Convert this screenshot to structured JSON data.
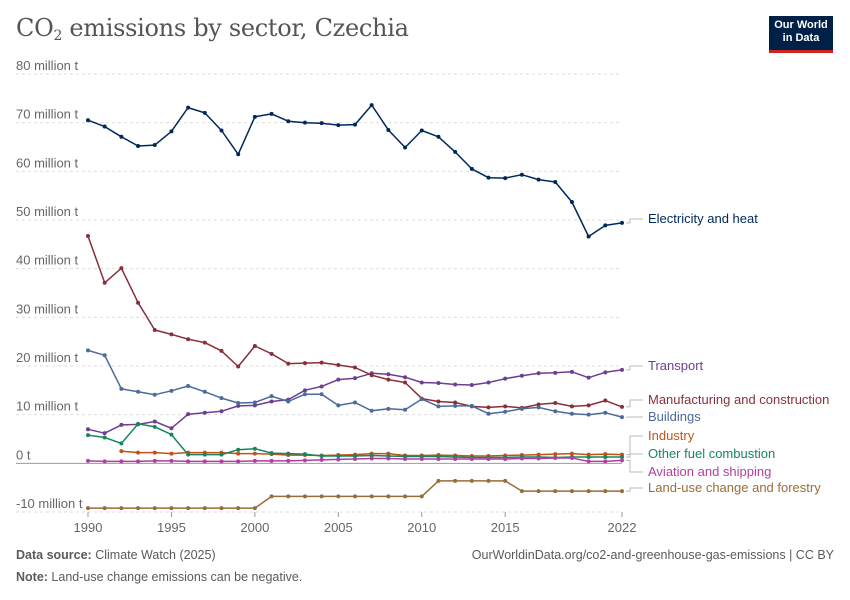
{
  "header": {
    "title_prefix": "CO",
    "title_sub": "2",
    "title_suffix": " emissions by sector, Czechia",
    "logo_line1": "Our World",
    "logo_line2": "in Data"
  },
  "footer": {
    "source_label": "Data source:",
    "source_value": " Climate Watch (2025)",
    "url": "OurWorldinData.org/co2-and-greenhouse-gas-emissions | CC BY",
    "note_label": "Note:",
    "note_value": " Land-use change emissions can be negative."
  },
  "chart_data": {
    "type": "line",
    "title": "CO₂ emissions by sector, Czechia",
    "xlabel": "",
    "ylabel": "",
    "xlim": [
      1990,
      2022
    ],
    "ylim": [
      -10000000,
      80000000
    ],
    "x_ticks": [
      1990,
      1995,
      2000,
      2005,
      2010,
      2015,
      2022
    ],
    "x_tick_labels": [
      "1990",
      "1995",
      "2000",
      "2005",
      "2010",
      "2015",
      "2022"
    ],
    "y_ticks": [
      -10000000,
      0,
      10000000,
      20000000,
      30000000,
      40000000,
      50000000,
      60000000,
      70000000,
      80000000
    ],
    "y_tick_labels": [
      "-10 million t",
      "0 t",
      "10 million t",
      "20 million t",
      "30 million t",
      "40 million t",
      "50 million t",
      "60 million t",
      "70 million t",
      "80 million t"
    ],
    "grid": true,
    "legend": "right",
    "series": [
      {
        "name": "Electricity and heat",
        "color": "#00295b",
        "x": [
          1990,
          1991,
          1992,
          1993,
          1994,
          1995,
          1996,
          1997,
          1998,
          1999,
          2000,
          2001,
          2002,
          2003,
          2004,
          2005,
          2006,
          2007,
          2008,
          2009,
          2010,
          2011,
          2012,
          2013,
          2014,
          2015,
          2016,
          2017,
          2018,
          2019,
          2020,
          2021,
          2022
        ],
        "values": [
          70500000,
          69200000,
          67100000,
          65200000,
          65400000,
          68200000,
          73100000,
          72000000,
          68400000,
          63500000,
          71200000,
          71800000,
          70300000,
          70000000,
          69900000,
          69500000,
          69600000,
          73600000,
          68500000,
          64900000,
          68400000,
          67100000,
          64000000,
          60500000,
          58700000,
          58600000,
          59300000,
          58300000,
          57800000,
          53700000,
          46600000,
          48900000,
          49400000
        ]
      },
      {
        "name": "Transport",
        "color": "#6d3e91",
        "x": [
          1990,
          1991,
          1992,
          1993,
          1994,
          1995,
          1996,
          1997,
          1998,
          1999,
          2000,
          2001,
          2002,
          2003,
          2004,
          2005,
          2006,
          2007,
          2008,
          2009,
          2010,
          2011,
          2012,
          2013,
          2014,
          2015,
          2016,
          2017,
          2018,
          2019,
          2020,
          2021,
          2022
        ],
        "values": [
          7000000,
          6200000,
          7900000,
          8000000,
          8600000,
          7200000,
          10100000,
          10400000,
          10700000,
          11800000,
          11900000,
          12700000,
          13100000,
          15000000,
          15800000,
          17200000,
          17500000,
          18500000,
          18300000,
          17700000,
          16600000,
          16500000,
          16200000,
          16100000,
          16600000,
          17400000,
          18000000,
          18500000,
          18600000,
          18800000,
          17600000,
          18700000,
          19200000
        ]
      },
      {
        "name": "Manufacturing and construction",
        "color": "#883039",
        "x": [
          1990,
          1991,
          1992,
          1993,
          1994,
          1995,
          1996,
          1997,
          1998,
          1999,
          2000,
          2001,
          2002,
          2003,
          2004,
          2005,
          2006,
          2007,
          2008,
          2009,
          2010,
          2011,
          2012,
          2013,
          2014,
          2015,
          2016,
          2017,
          2018,
          2019,
          2020,
          2021,
          2022
        ],
        "values": [
          46700000,
          37100000,
          40100000,
          33000000,
          27400000,
          26500000,
          25500000,
          24800000,
          23100000,
          19900000,
          24100000,
          22500000,
          20500000,
          20600000,
          20700000,
          20200000,
          19700000,
          18100000,
          17200000,
          16600000,
          13300000,
          12700000,
          12500000,
          11700000,
          11500000,
          11700000,
          11400000,
          12100000,
          12400000,
          11700000,
          11900000,
          12900000,
          11600000
        ]
      },
      {
        "name": "Buildings",
        "color": "#4c6a9c",
        "x": [
          1990,
          1991,
          1992,
          1993,
          1994,
          1995,
          1996,
          1997,
          1998,
          1999,
          2000,
          2001,
          2002,
          2003,
          2004,
          2005,
          2006,
          2007,
          2008,
          2009,
          2010,
          2011,
          2012,
          2013,
          2014,
          2015,
          2016,
          2017,
          2018,
          2019,
          2020,
          2021,
          2022
        ],
        "values": [
          23200000,
          22200000,
          15300000,
          14700000,
          14100000,
          14900000,
          15900000,
          14700000,
          13400000,
          12400000,
          12500000,
          13800000,
          12700000,
          14200000,
          14200000,
          11900000,
          12500000,
          10800000,
          11200000,
          11000000,
          13200000,
          11700000,
          11800000,
          11800000,
          10200000,
          10600000,
          11200000,
          11500000,
          10700000,
          10200000,
          10000000,
          10400000,
          9500000
        ]
      },
      {
        "name": "Industry",
        "color": "#c15317",
        "x": [
          1992,
          1993,
          1994,
          1995,
          1996,
          1997,
          1998,
          1999,
          2000,
          2001,
          2002,
          2003,
          2004,
          2005,
          2006,
          2007,
          2008,
          2009,
          2010,
          2011,
          2012,
          2013,
          2014,
          2015,
          2016,
          2017,
          2018,
          2019,
          2020,
          2021,
          2022
        ],
        "values": [
          2500000,
          2200000,
          2200000,
          2000000,
          2200000,
          2200000,
          2200000,
          2000000,
          2000000,
          1900000,
          1700000,
          1700000,
          1600000,
          1700000,
          1800000,
          2000000,
          2000000,
          1600000,
          1600000,
          1700000,
          1600000,
          1500000,
          1500000,
          1600000,
          1700000,
          1800000,
          1900000,
          2000000,
          1800000,
          1900000,
          1800000
        ]
      },
      {
        "name": "Other fuel combustion",
        "color": "#18855f",
        "x": [
          1990,
          1991,
          1992,
          1993,
          1994,
          1995,
          1996,
          1997,
          1998,
          1999,
          2000,
          2001,
          2002,
          2003,
          2004,
          2005,
          2006,
          2007,
          2008,
          2009,
          2010,
          2011,
          2012,
          2013,
          2014,
          2015,
          2016,
          2017,
          2018,
          2019,
          2020,
          2021,
          2022
        ],
        "values": [
          5800000,
          5300000,
          4100000,
          8100000,
          7500000,
          5900000,
          1800000,
          1800000,
          1800000,
          2800000,
          3000000,
          2100000,
          2000000,
          1900000,
          1500000,
          1500000,
          1500000,
          1600000,
          1500000,
          1400000,
          1400000,
          1400000,
          1300000,
          1200000,
          1200000,
          1200000,
          1300000,
          1300000,
          1200000,
          1300000,
          1300000,
          1300000,
          1300000
        ]
      },
      {
        "name": "Aviation and shipping",
        "color": "#b13fa2",
        "x": [
          1990,
          1991,
          1992,
          1993,
          1994,
          1995,
          1996,
          1997,
          1998,
          1999,
          2000,
          2001,
          2002,
          2003,
          2004,
          2005,
          2006,
          2007,
          2008,
          2009,
          2010,
          2011,
          2012,
          2013,
          2014,
          2015,
          2016,
          2017,
          2018,
          2019,
          2020,
          2021,
          2022
        ],
        "values": [
          500000,
          400000,
          400000,
          400000,
          500000,
          500000,
          400000,
          400000,
          400000,
          400000,
          500000,
          500000,
          500000,
          600000,
          700000,
          800000,
          900000,
          1000000,
          1000000,
          900000,
          900000,
          900000,
          900000,
          900000,
          900000,
          900000,
          1000000,
          1000000,
          1100000,
          1100000,
          400000,
          400000,
          600000
        ]
      },
      {
        "name": "Land-use change and forestry",
        "color": "#996d39",
        "x": [
          1990,
          1991,
          1992,
          1993,
          1994,
          1995,
          1996,
          1997,
          1998,
          1999,
          2000,
          2001,
          2002,
          2003,
          2004,
          2005,
          2006,
          2007,
          2008,
          2009,
          2010,
          2011,
          2012,
          2013,
          2014,
          2015,
          2016,
          2017,
          2018,
          2019,
          2020,
          2021,
          2022
        ],
        "values": [
          -9200000,
          -9200000,
          -9200000,
          -9200000,
          -9200000,
          -9200000,
          -9200000,
          -9200000,
          -9200000,
          -9200000,
          -9200000,
          -6800000,
          -6800000,
          -6800000,
          -6800000,
          -6800000,
          -6800000,
          -6800000,
          -6800000,
          -6800000,
          -6800000,
          -3600000,
          -3600000,
          -3600000,
          -3600000,
          -3600000,
          -5700000,
          -5700000,
          -5700000,
          -5700000,
          -5700000,
          -5700000,
          -5700000
        ]
      }
    ]
  }
}
